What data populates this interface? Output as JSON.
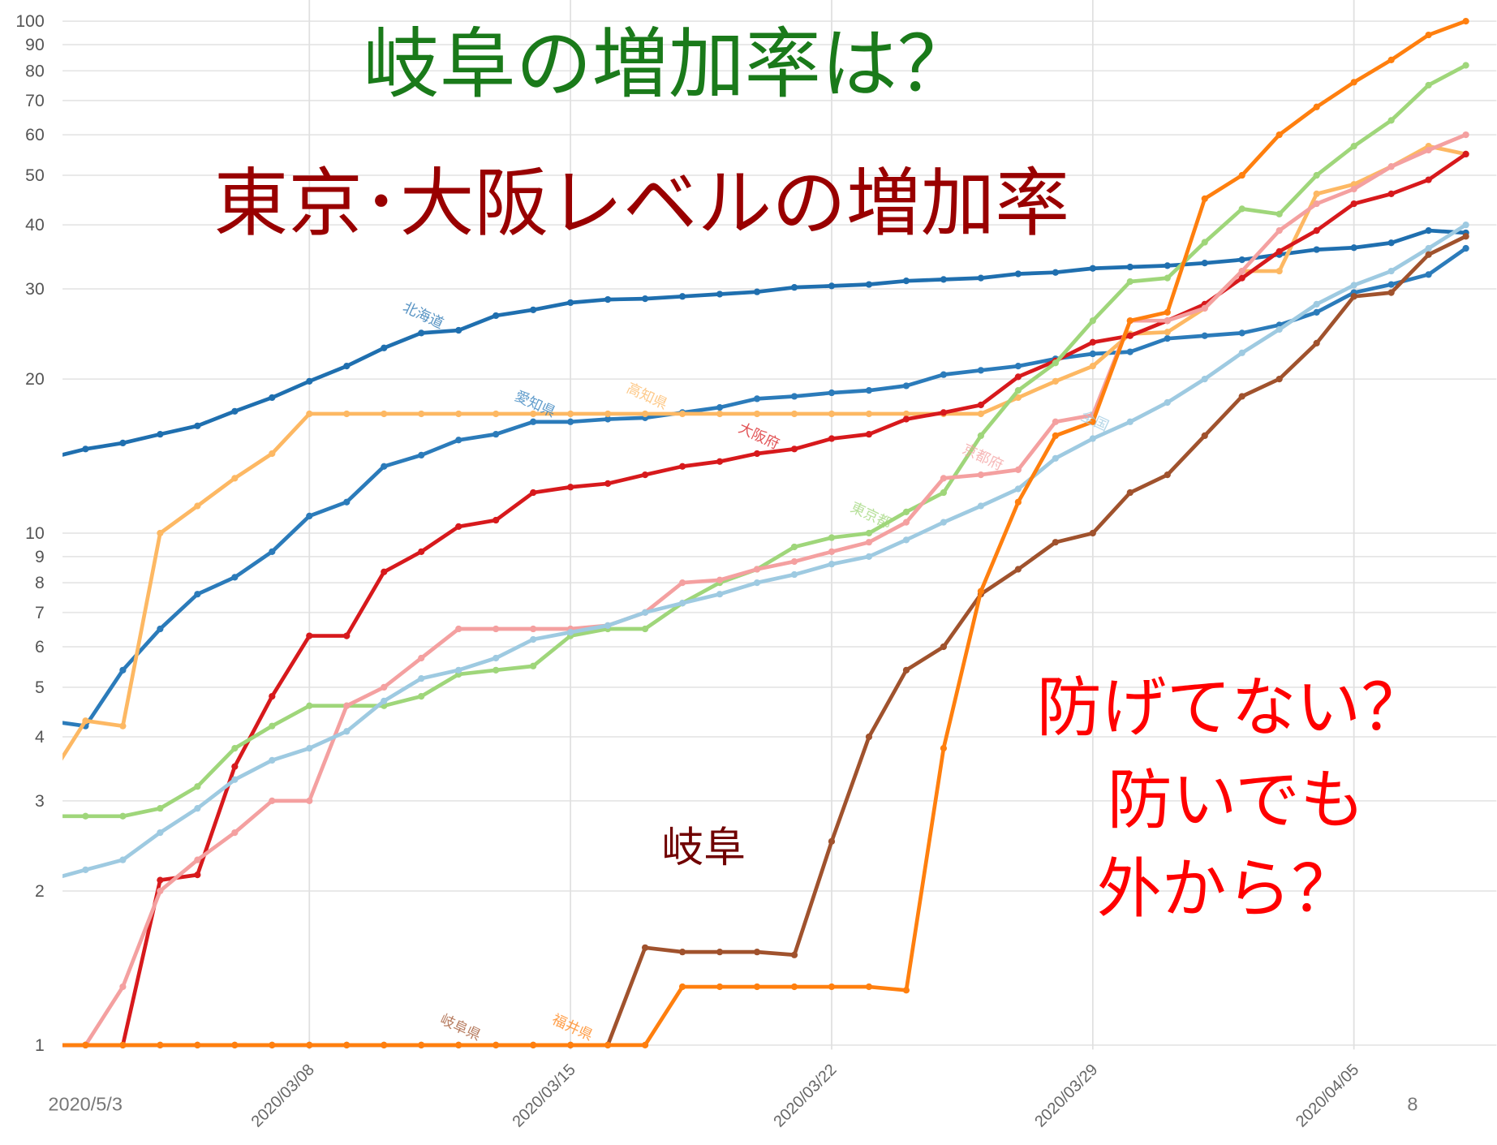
{
  "chart_data": {
    "type": "line",
    "title": "岐阜の増加率は？",
    "subtitle": "東京･大阪レベルの増加率",
    "annotations": [
      "岐阜",
      "防げてない？",
      "防いでも",
      "外から？"
    ],
    "footer": {
      "date": "2020/5/3",
      "page": "8"
    },
    "log_y": true,
    "grid": true,
    "xlim": [
      "2020/03/01",
      "2020/04/09"
    ],
    "xticks": [
      "2020/03/08",
      "2020/03/15",
      "2020/03/22",
      "2020/03/29",
      "2020/04/05"
    ],
    "ylim": [
      0.98,
      110
    ],
    "yticks": [
      1,
      2,
      3,
      4,
      5,
      6,
      7,
      8,
      9,
      10,
      20,
      30,
      40,
      50,
      60,
      70,
      80,
      90,
      100
    ],
    "x": [
      "2020/03/01",
      "2020/03/02",
      "2020/03/03",
      "2020/03/04",
      "2020/03/05",
      "2020/03/06",
      "2020/03/07",
      "2020/03/08",
      "2020/03/09",
      "2020/03/10",
      "2020/03/11",
      "2020/03/12",
      "2020/03/13",
      "2020/03/14",
      "2020/03/15",
      "2020/03/16",
      "2020/03/17",
      "2020/03/18",
      "2020/03/19",
      "2020/03/20",
      "2020/03/21",
      "2020/03/22",
      "2020/03/23",
      "2020/03/24",
      "2020/03/25",
      "2020/03/26",
      "2020/03/27",
      "2020/03/28",
      "2020/03/29",
      "2020/03/30",
      "2020/03/31",
      "2020/04/01",
      "2020/04/02",
      "2020/04/03",
      "2020/04/04",
      "2020/04/05",
      "2020/04/06",
      "2020/04/07",
      "2020/04/08"
    ],
    "series": [
      {
        "name": "北海道",
        "color": "#1f6faf",
        "values": [
          14.0,
          14.6,
          15.0,
          15.6,
          16.2,
          17.3,
          18.4,
          19.8,
          21.2,
          23.0,
          24.6,
          24.9,
          26.6,
          27.3,
          28.2,
          28.6,
          28.7,
          29.0,
          29.3,
          29.6,
          30.2,
          30.4,
          30.6,
          31.1,
          31.3,
          31.5,
          32.1,
          32.3,
          32.9,
          33.1,
          33.3,
          33.7,
          34.2,
          35.0,
          35.8,
          36.1,
          36.9,
          39.0,
          38.6
        ]
      },
      {
        "name": "愛知県",
        "color": "#2b7bba",
        "values": [
          4.3,
          4.2,
          5.4,
          6.5,
          7.6,
          8.2,
          9.2,
          10.8,
          11.5,
          13.5,
          14.2,
          15.2,
          15.6,
          16.5,
          16.5,
          16.7,
          16.8,
          17.2,
          17.6,
          18.3,
          18.5,
          18.8,
          19.0,
          19.4,
          20.4,
          20.8,
          21.2,
          21.9,
          22.4,
          22.6,
          24.0,
          24.3,
          24.6,
          25.5,
          27.0,
          29.5,
          30.6,
          32.0,
          36.0
        ]
      },
      {
        "name": "高知県",
        "color": "#fdb863",
        "values": [
          3.3,
          4.3,
          4.2,
          10.0,
          11.3,
          12.8,
          14.3,
          17.1,
          17.1,
          17.1,
          17.1,
          17.1,
          17.1,
          17.1,
          17.1,
          17.1,
          17.1,
          17.1,
          17.1,
          17.1,
          17.1,
          17.1,
          17.1,
          17.1,
          17.1,
          17.1,
          18.4,
          19.8,
          21.2,
          24.5,
          24.7,
          27.5,
          32.5,
          32.5,
          46.0,
          48.0,
          52.0,
          57.0,
          55.0
        ]
      },
      {
        "name": "大阪府",
        "color": "#d7191c",
        "values": [
          1.0,
          1.0,
          1.0,
          2.1,
          2.15,
          3.5,
          4.8,
          6.3,
          6.3,
          8.4,
          9.2,
          10.3,
          10.6,
          12.0,
          12.3,
          12.5,
          13.0,
          13.5,
          13.8,
          14.3,
          14.6,
          15.3,
          15.6,
          16.7,
          17.2,
          17.8,
          20.2,
          21.7,
          23.6,
          24.3,
          26.0,
          28.0,
          31.5,
          35.5,
          39.0,
          44.0,
          46.0,
          49.0,
          55.0
        ]
      },
      {
        "name": "東京都",
        "color": "#9fd67a",
        "values": [
          2.8,
          2.8,
          2.8,
          2.9,
          3.2,
          3.8,
          4.2,
          4.6,
          4.6,
          4.6,
          4.8,
          5.3,
          5.4,
          5.5,
          6.3,
          6.5,
          6.5,
          7.3,
          8.0,
          8.5,
          9.4,
          9.8,
          10.0,
          11.0,
          12.0,
          15.5,
          19.0,
          21.5,
          26.0,
          31.0,
          31.5,
          37.0,
          43.0,
          42.0,
          50.0,
          57.0,
          64.0,
          75.0,
          82.0
        ]
      },
      {
        "name": "京都府",
        "color": "#f4a0a0",
        "values": [
          1.0,
          1.0,
          1.3,
          2.0,
          2.3,
          2.6,
          3.0,
          3.0,
          4.6,
          5.0,
          5.7,
          6.5,
          6.5,
          6.5,
          6.5,
          6.6,
          7.0,
          8.0,
          8.1,
          8.5,
          8.8,
          9.2,
          9.6,
          10.5,
          12.8,
          13.0,
          13.3,
          16.5,
          17.0,
          26.0,
          26.0,
          27.5,
          32.5,
          39.0,
          44.0,
          47.0,
          52.0,
          56.0,
          60.0
        ]
      },
      {
        "name": "全国",
        "color": "#9ecae1",
        "values": [
          2.1,
          2.2,
          2.3,
          2.6,
          2.9,
          3.3,
          3.6,
          3.8,
          4.1,
          4.7,
          5.2,
          5.4,
          5.7,
          6.2,
          6.4,
          6.6,
          7.0,
          7.3,
          7.6,
          8.0,
          8.3,
          8.7,
          9.0,
          9.7,
          10.5,
          11.3,
          12.2,
          14.0,
          15.3,
          16.5,
          18.0,
          20.0,
          22.5,
          25.0,
          28.0,
          30.5,
          32.5,
          36.0,
          40.0
        ]
      },
      {
        "name": "岐阜県",
        "color": "#a0522d",
        "values": [
          1,
          1,
          1,
          1,
          1,
          1,
          1,
          1,
          1,
          1,
          1,
          1,
          1,
          1,
          1,
          1,
          1.55,
          1.52,
          1.52,
          1.52,
          1.5,
          2.5,
          4.0,
          5.4,
          6.0,
          7.6,
          8.5,
          9.6,
          10.0,
          12.0,
          13.0,
          15.5,
          18.5,
          20.0,
          23.5,
          29.0,
          29.5,
          35.0,
          38.0
        ]
      },
      {
        "name": "福井県",
        "color": "#ff7f0e",
        "values": [
          1,
          1,
          1,
          1,
          1,
          1,
          1,
          1,
          1,
          1,
          1,
          1,
          1,
          1,
          1,
          1,
          1,
          1.3,
          1.3,
          1.3,
          1.3,
          1.3,
          1.3,
          1.28,
          3.8,
          7.7,
          11.5,
          15.5,
          16.5,
          26,
          27,
          45,
          50,
          60,
          68,
          76,
          84,
          94,
          100
        ]
      }
    ]
  }
}
